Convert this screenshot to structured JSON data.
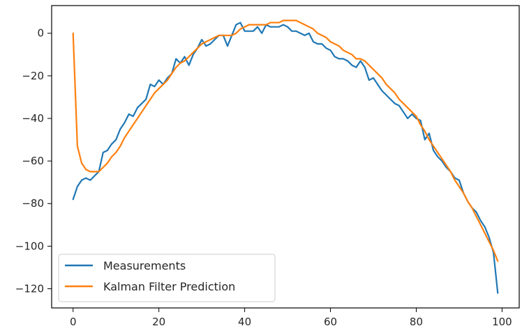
{
  "chart_data": {
    "type": "line",
    "title": "",
    "xlabel": "",
    "ylabel": "",
    "xlim": [
      -5,
      104
    ],
    "ylim": [
      -129,
      13
    ],
    "xticks": [
      0,
      20,
      40,
      60,
      80,
      100
    ],
    "yticks": [
      0,
      -20,
      -40,
      -60,
      -80,
      -100,
      -120
    ],
    "xtick_labels": [
      "0",
      "20",
      "40",
      "60",
      "80",
      "100"
    ],
    "ytick_labels": [
      "0",
      "−20",
      "−40",
      "−60",
      "−80",
      "−100",
      "−120"
    ],
    "grid": false,
    "legend": {
      "placement": "bottom-left"
    },
    "series": [
      {
        "name": "Measurements",
        "color": "#1f77b4",
        "x": [
          0,
          1,
          2,
          3,
          4,
          5,
          6,
          7,
          8,
          9,
          10,
          11,
          12,
          13,
          14,
          15,
          16,
          17,
          18,
          19,
          20,
          21,
          22,
          23,
          24,
          25,
          26,
          27,
          28,
          29,
          30,
          31,
          32,
          33,
          34,
          35,
          36,
          37,
          38,
          39,
          40,
          41,
          42,
          43,
          44,
          45,
          46,
          47,
          48,
          49,
          50,
          51,
          52,
          53,
          54,
          55,
          56,
          57,
          58,
          59,
          60,
          61,
          62,
          63,
          64,
          65,
          66,
          67,
          68,
          69,
          70,
          71,
          72,
          73,
          74,
          75,
          76,
          77,
          78,
          79,
          80,
          81,
          82,
          83,
          84,
          85,
          86,
          87,
          88,
          89,
          90,
          91,
          92,
          93,
          94,
          95,
          96,
          97,
          98,
          99
        ],
        "y": [
          -78,
          -72,
          -69,
          -68,
          -69,
          -67,
          -65,
          -56,
          -55,
          -52,
          -50,
          -45,
          -42,
          -38,
          -39,
          -35,
          -33,
          -31,
          -24,
          -25,
          -22,
          -24,
          -21,
          -19,
          -12,
          -14,
          -11,
          -15,
          -10,
          -7,
          -3,
          -6,
          -5,
          -3,
          -1,
          -1,
          -6,
          -1,
          4,
          5,
          1,
          1,
          1,
          3,
          0,
          4,
          3,
          3,
          3,
          4,
          3,
          1,
          1,
          0,
          -1,
          0,
          -4,
          -5,
          -5,
          -7,
          -8,
          -11,
          -12,
          -12,
          -13,
          -15,
          -16,
          -13,
          -16,
          -22,
          -21,
          -24,
          -27,
          -29,
          -31,
          -33,
          -34,
          -37,
          -40,
          -38,
          -40,
          -41,
          -50,
          -47,
          -55,
          -58,
          -60,
          -63,
          -65,
          -68,
          -69,
          -75,
          -79,
          -82,
          -84,
          -88,
          -91,
          -96,
          -103,
          -122
        ]
      },
      {
        "name": "Kalman Filter Prediction",
        "color": "#ff7f0e",
        "x": [
          0,
          1,
          2,
          3,
          4,
          5,
          6,
          7,
          8,
          9,
          10,
          11,
          12,
          13,
          14,
          15,
          16,
          17,
          18,
          19,
          20,
          21,
          22,
          23,
          24,
          25,
          26,
          27,
          28,
          29,
          30,
          31,
          32,
          33,
          34,
          35,
          36,
          37,
          38,
          39,
          40,
          41,
          42,
          43,
          44,
          45,
          46,
          47,
          48,
          49,
          50,
          51,
          52,
          53,
          54,
          55,
          56,
          57,
          58,
          59,
          60,
          61,
          62,
          63,
          64,
          65,
          66,
          67,
          68,
          69,
          70,
          71,
          72,
          73,
          74,
          75,
          76,
          77,
          78,
          79,
          80,
          81,
          82,
          83,
          84,
          85,
          86,
          87,
          88,
          89,
          90,
          91,
          92,
          93,
          94,
          95,
          96,
          97,
          98,
          99
        ],
        "y": [
          0,
          -53,
          -61,
          -64,
          -65,
          -65,
          -65,
          -63,
          -61,
          -58,
          -56,
          -53,
          -49,
          -46,
          -43,
          -40,
          -37,
          -34,
          -31,
          -28,
          -26,
          -24,
          -22,
          -19,
          -16,
          -14,
          -13,
          -11,
          -9,
          -7,
          -5,
          -4,
          -3,
          -2,
          -1,
          -1,
          -1,
          -1,
          0,
          2,
          3,
          4,
          4,
          4,
          4,
          4,
          5,
          5,
          5,
          6,
          6,
          6,
          6,
          5,
          4,
          3,
          2,
          0,
          -1,
          -2,
          -4,
          -5,
          -6,
          -8,
          -9,
          -10,
          -12,
          -12,
          -13,
          -15,
          -17,
          -19,
          -21,
          -24,
          -26,
          -28,
          -31,
          -33,
          -35,
          -37,
          -39,
          -43,
          -46,
          -50,
          -53,
          -56,
          -59,
          -62,
          -65,
          -69,
          -72,
          -75,
          -79,
          -82,
          -86,
          -90,
          -94,
          -98,
          -102,
          -107
        ]
      }
    ]
  }
}
